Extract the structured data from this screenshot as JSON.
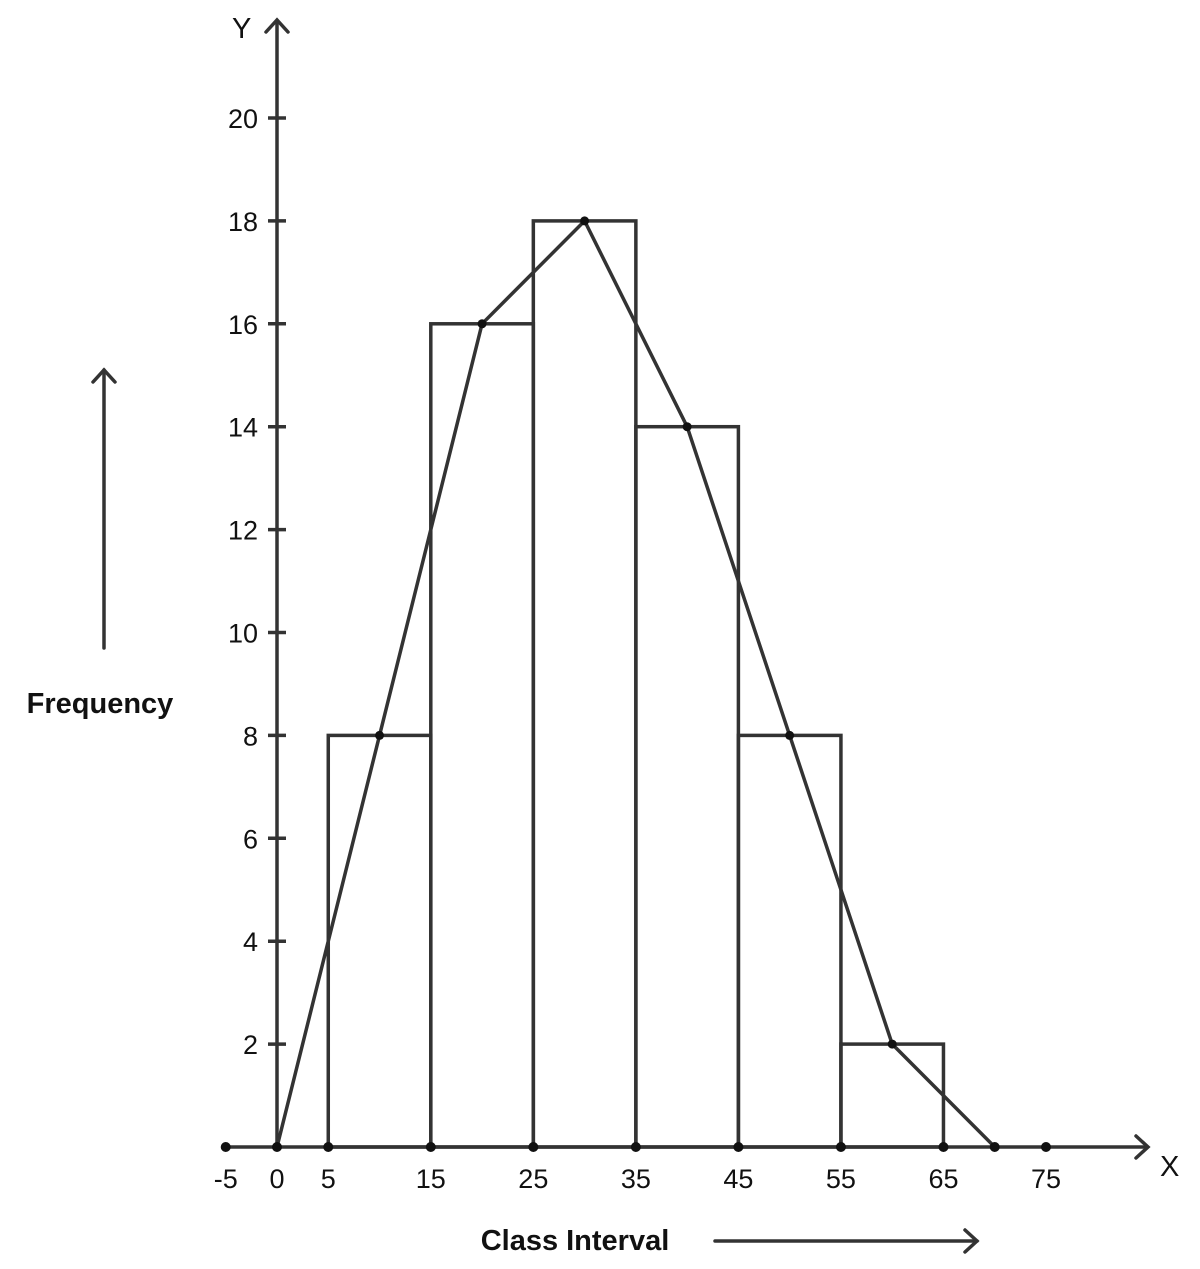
{
  "chart_data": {
    "type": "bar",
    "subtype": "histogram with frequency polygon",
    "xlabel": "Class Interval",
    "ylabel": "Frequency",
    "x_axis_letter": "X",
    "y_axis_letter": "Y",
    "xlim": [
      -5,
      85
    ],
    "ylim": [
      0,
      22
    ],
    "x_ticks": [
      -5,
      0,
      5,
      15,
      25,
      35,
      45,
      55,
      65,
      75
    ],
    "x_tick_labels": [
      "-5",
      "0",
      "5",
      "15",
      "25",
      "35",
      "45",
      "55",
      "65",
      "75"
    ],
    "y_ticks": [
      2,
      4,
      6,
      8,
      10,
      12,
      14,
      16,
      18,
      20
    ],
    "y_tick_labels": [
      "2",
      "4",
      "6",
      "8",
      "10",
      "12",
      "14",
      "16",
      "18",
      "20"
    ],
    "bins": [
      {
        "from": 5,
        "to": 15,
        "frequency": 8
      },
      {
        "from": 15,
        "to": 25,
        "frequency": 16
      },
      {
        "from": 25,
        "to": 35,
        "frequency": 18
      },
      {
        "from": 35,
        "to": 45,
        "frequency": 14
      },
      {
        "from": 45,
        "to": 55,
        "frequency": 8
      },
      {
        "from": 55,
        "to": 65,
        "frequency": 2
      }
    ],
    "polygon": {
      "x": [
        0,
        10,
        20,
        30,
        40,
        50,
        60,
        70
      ],
      "y": [
        0,
        8,
        16,
        18,
        14,
        8,
        2,
        0
      ]
    },
    "axis_points": [
      -5,
      0,
      5,
      15,
      25,
      35,
      45,
      55,
      65,
      70,
      75
    ],
    "grid": false,
    "colors": {
      "line": "#333333",
      "point": "#111111"
    }
  }
}
